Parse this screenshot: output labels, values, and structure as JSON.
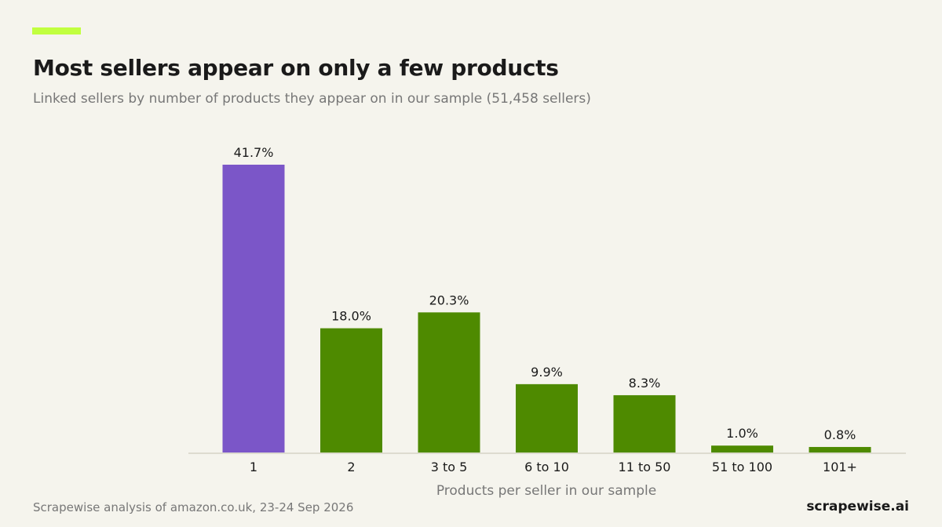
{
  "header": {
    "title": "Most sellers appear on only a few products",
    "subtitle": "Linked sellers by number of products they appear on in our sample (51,458 sellers)"
  },
  "footer": {
    "source": "Scrapewise analysis of amazon.co.uk, 23-24 Sep 2026",
    "brand": "scrapewise.ai"
  },
  "colors": {
    "background": "#f5f4ed",
    "accent": "#c1ff3f",
    "highlight_bar": "#7b56c8",
    "bar": "#4e8a00",
    "axis": "#dddbd0"
  },
  "chart_data": {
    "type": "bar",
    "title": "Most sellers appear on only a few products",
    "subtitle": "Linked sellers by number of products they appear on in our sample (51,458 sellers)",
    "xlabel": "Products per seller in our sample",
    "ylabel": "",
    "categories": [
      "1",
      "2",
      "3 to 5",
      "6 to 10",
      "11 to 50",
      "51 to 100",
      "101+"
    ],
    "values": [
      41.7,
      18.0,
      20.3,
      9.9,
      8.3,
      1.0,
      0.8
    ],
    "value_labels": [
      "41.7%",
      "18.0%",
      "20.3%",
      "9.9%",
      "8.3%",
      "1.0%",
      "0.8%"
    ],
    "unit": "%",
    "highlight_index": 0,
    "grid": false,
    "legend": "none"
  }
}
